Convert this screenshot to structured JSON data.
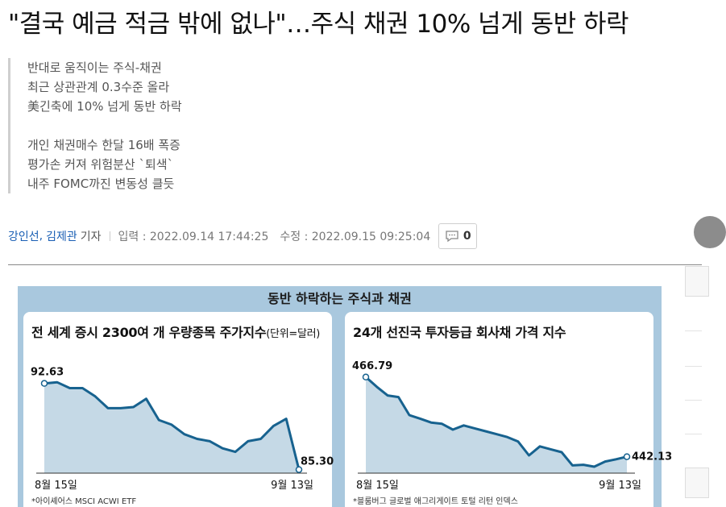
{
  "headline": "\"결국 예금 적금 밖에 없나\"…주식 채권 10% 넘게 동반 하락",
  "summary": {
    "group1": [
      "반대로 움직이는 주식-채권",
      "최근 상관관계 0.3수준 올라",
      "美긴축에 10% 넘게 동반 하락"
    ],
    "group2": [
      "개인 채권매수 한달 16배 폭증",
      "평가손 커져 위험분산 `퇴색`",
      "내주 FOMC까진 변동성 클듯"
    ]
  },
  "byline": {
    "author1": "강인선",
    "comma": ",",
    "author2": "김제관",
    "role": "기자",
    "input": "입력 : 2022.09.14 17:44:25",
    "modified": "수정 : 2022.09.15 09:25:04",
    "comment_count": "0"
  },
  "infographic": {
    "title": "동반 하락하는 주식과 채권",
    "colors": {
      "background": "#a9c8de",
      "line": "#17628f",
      "fill": "#c5d9e6"
    }
  },
  "chart_data": [
    {
      "type": "area",
      "title": "전 세계 증시 2300여 개 우량종목 주가지수",
      "unit": "(단위=달러)",
      "start_label": "8월 15일",
      "end_label": "9월 13일",
      "first_value_label": "92.63",
      "last_value_label": "85.30",
      "source": "*아이셰어스 MSCI ACWI ETF",
      "values": [
        92.6,
        92.7,
        92.2,
        92.2,
        91.5,
        90.5,
        90.5,
        90.6,
        91.3,
        89.5,
        89.1,
        88.3,
        87.9,
        87.7,
        87.1,
        86.8,
        87.7,
        87.9,
        89.0,
        89.6,
        85.3
      ],
      "ylim": [
        85.0,
        93.6
      ]
    },
    {
      "type": "area",
      "title": "24개 선진국 투자등급 회사채 가격 지수",
      "start_label": "8월 15일",
      "end_label": "9월 13일",
      "first_value_label": "466.79",
      "last_value_label": "442.13",
      "source": "*블룸버그 글로벌 애그리게이트 토털 리턴 인덱스",
      "values": [
        466.8,
        463.8,
        461.1,
        460.6,
        455.0,
        453.9,
        452.7,
        452.3,
        450.5,
        451.8,
        450.9,
        450.0,
        449.1,
        448.2,
        446.8,
        442.5,
        445.3,
        444.4,
        443.5,
        439.4,
        439.6,
        439.0,
        440.6,
        441.3,
        442.1
      ],
      "ylim": [
        437.0,
        468.5
      ]
    }
  ]
}
